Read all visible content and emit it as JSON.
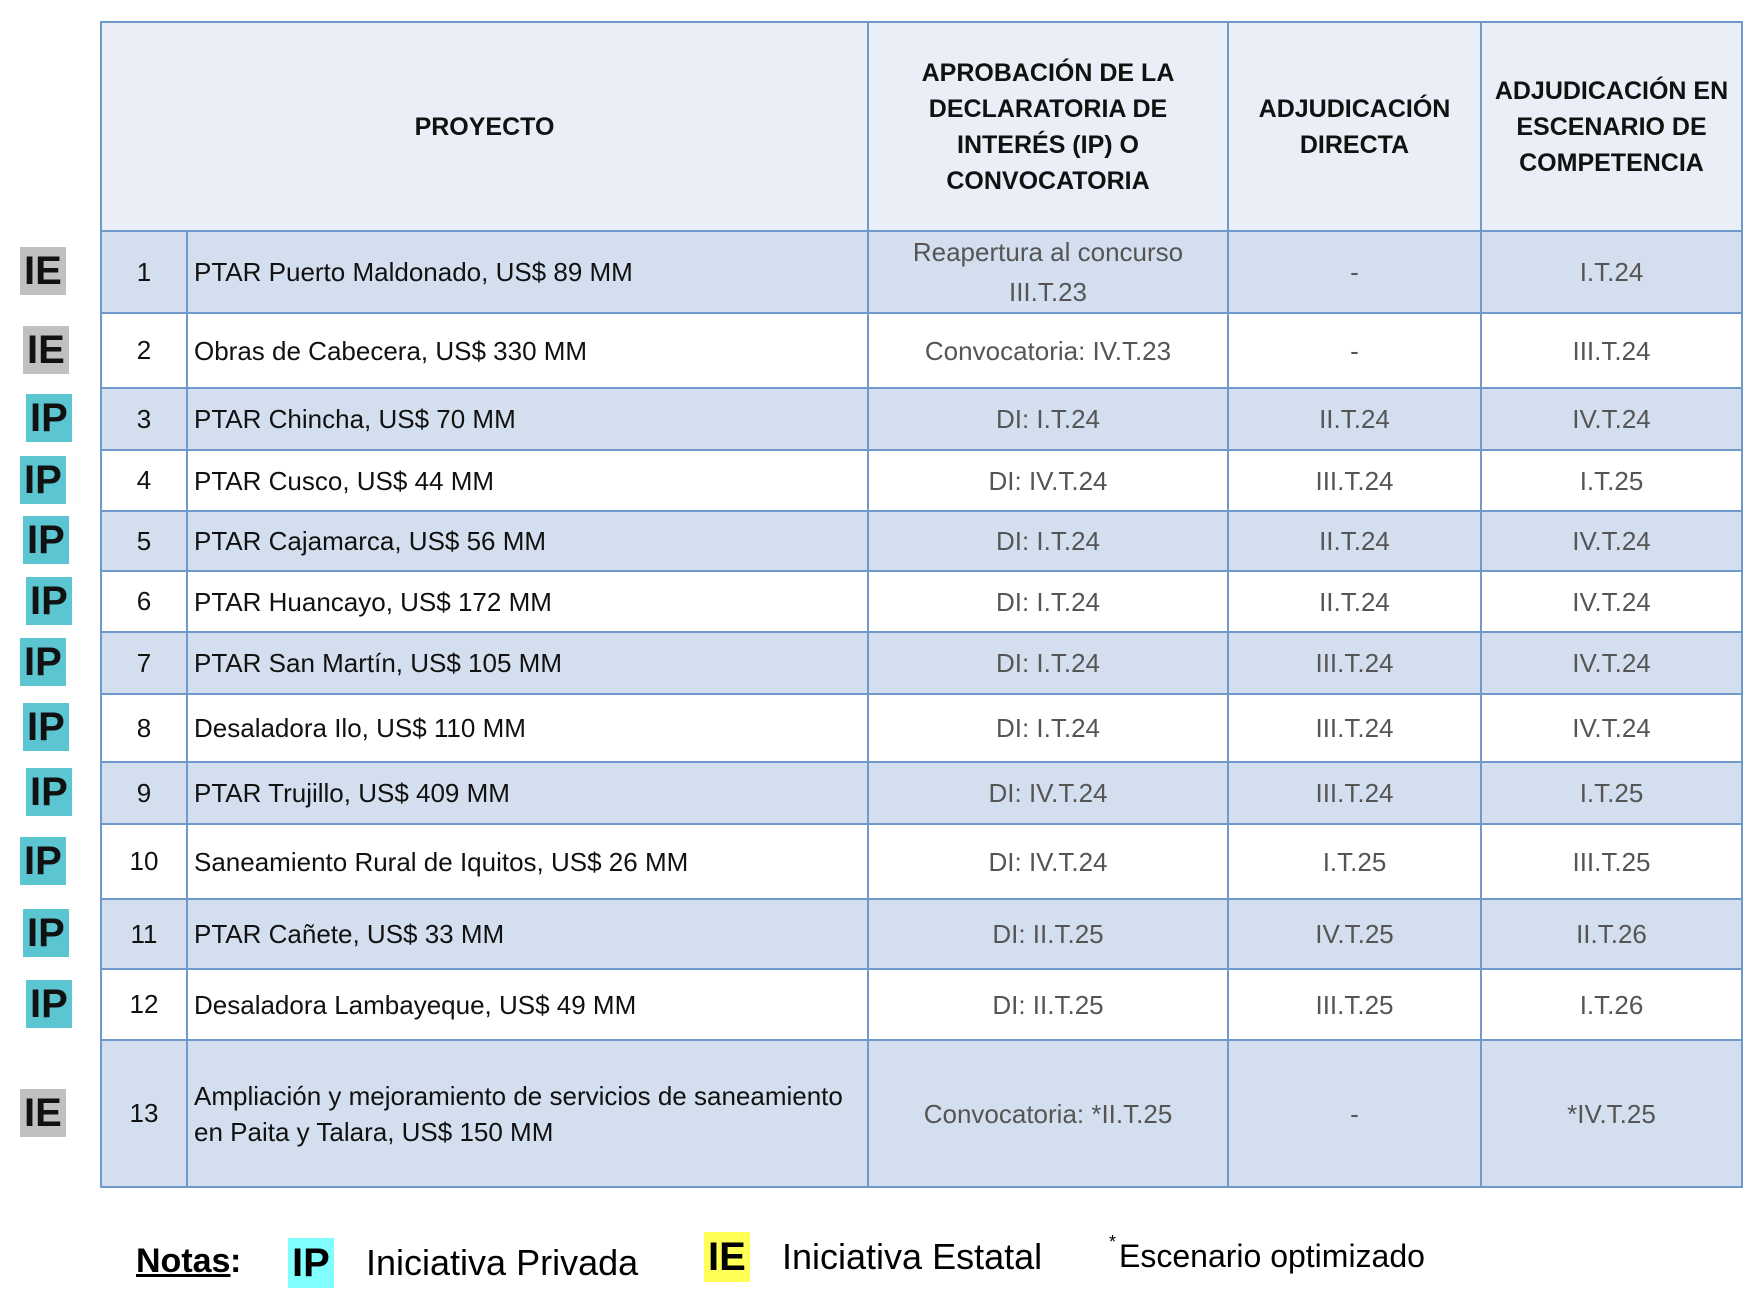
{
  "header": {
    "project": "PROYECTO",
    "approval": "APROBACIÓN DE LA DECLARATORIA DE INTERÉS (IP) O CONVOCATORIA",
    "direct": "ADJUDICACIÓN DIRECTA",
    "competition": "ADJUDICACIÓN EN ESCENARIO DE COMPETENCIA"
  },
  "rows": [
    {
      "type": "IE",
      "num": "1",
      "project": "PTAR Puerto Maldonado, US$ 89 MM",
      "approval": "Reapertura al concurso III.T.23",
      "direct": "-",
      "competition": "I.T.24"
    },
    {
      "type": "IE",
      "num": "2",
      "project": "Obras de Cabecera, US$ 330 MM",
      "approval": "Convocatoria: IV.T.23",
      "direct": "-",
      "competition": "III.T.24"
    },
    {
      "type": "IP",
      "num": "3",
      "project": "PTAR Chincha, US$ 70 MM",
      "approval": "DI: I.T.24",
      "direct": "II.T.24",
      "competition": "IV.T.24"
    },
    {
      "type": "IP",
      "num": "4",
      "project": "PTAR Cusco, US$ 44 MM",
      "approval": "DI: IV.T.24",
      "direct": "III.T.24",
      "competition": "I.T.25"
    },
    {
      "type": "IP",
      "num": "5",
      "project": "PTAR Cajamarca, US$ 56 MM",
      "approval": "DI: I.T.24",
      "direct": "II.T.24",
      "competition": "IV.T.24"
    },
    {
      "type": "IP",
      "num": "6",
      "project": "PTAR Huancayo, US$ 172 MM",
      "approval": "DI: I.T.24",
      "direct": "II.T.24",
      "competition": "IV.T.24"
    },
    {
      "type": "IP",
      "num": "7",
      "project": "PTAR San Martín, US$ 105 MM",
      "approval": "DI: I.T.24",
      "direct": "III.T.24",
      "competition": "IV.T.24"
    },
    {
      "type": "IP",
      "num": "8",
      "project": "Desaladora Ilo, US$ 110 MM",
      "approval": "DI: I.T.24",
      "direct": "III.T.24",
      "competition": "IV.T.24"
    },
    {
      "type": "IP",
      "num": "9",
      "project": "PTAR Trujillo, US$ 409 MM",
      "approval": "DI: IV.T.24",
      "direct": "III.T.24",
      "competition": "I.T.25"
    },
    {
      "type": "IP",
      "num": "10",
      "project": "Saneamiento Rural de Iquitos, US$ 26 MM",
      "approval": "DI: IV.T.24",
      "direct": "I.T.25",
      "competition": "III.T.25"
    },
    {
      "type": "IP",
      "num": "11",
      "project": "PTAR Cañete, US$ 33 MM",
      "approval": "DI: II.T.25",
      "direct": "IV.T.25",
      "competition": "II.T.26"
    },
    {
      "type": "IP",
      "num": "12",
      "project": "Desaladora Lambayeque, US$ 49 MM",
      "approval": "DI: II.T.25",
      "direct": "III.T.25",
      "competition": "I.T.26"
    },
    {
      "type": "IE",
      "num": "13",
      "project": "Ampliación y mejoramiento de servicios de saneamiento en Paita y Talara, US$ 150 MM",
      "approval": "Convocatoria: *II.T.25",
      "direct": "-",
      "competition": "*IV.T.25"
    }
  ],
  "notes": {
    "label": "Notas",
    "colon": ":",
    "ip_badge": "IP",
    "ip_label": "Iniciativa Privada",
    "ie_badge": "IE",
    "ie_label": "Iniciativa Estatal",
    "asterisk": "*",
    "optimized": "Escenario optimizado"
  },
  "colors": {
    "ie_badge": "#c0c0c0",
    "ip_badge": "#5bc6d1",
    "legend_ip": "#80ffff",
    "legend_ie": "#ffff55",
    "border": "#6f98cb"
  }
}
